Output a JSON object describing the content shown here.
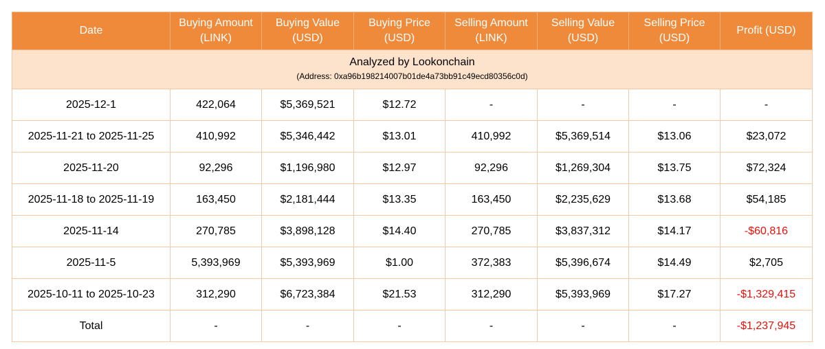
{
  "columns": [
    {
      "l1": "Date",
      "l2": ""
    },
    {
      "l1": "Buying Amount",
      "l2": "(LINK)"
    },
    {
      "l1": "Buying Value",
      "l2": "(USD)"
    },
    {
      "l1": "Buying Price",
      "l2": "(USD)"
    },
    {
      "l1": "Selling Amount",
      "l2": "(LINK)"
    },
    {
      "l1": "Selling Value",
      "l2": "(USD)"
    },
    {
      "l1": "Selling Price",
      "l2": "(USD)"
    },
    {
      "l1": "Profit (USD)",
      "l2": ""
    }
  ],
  "analyzed": {
    "title": "Analyzed by Lookonchain",
    "address": "(Address: 0xa96b198214007b01de4a73bb91c49ecd80356c0d)"
  },
  "rows": [
    {
      "date": "2025-12-1",
      "buy_amount": "422,064",
      "buy_value": "$5,369,521",
      "buy_price": "$12.72",
      "sell_amount": "-",
      "sell_value": "-",
      "sell_price": "-",
      "profit": "-",
      "negative": false
    },
    {
      "date": "2025-11-21 to 2025-11-25",
      "buy_amount": "410,992",
      "buy_value": "$5,346,442",
      "buy_price": "$13.01",
      "sell_amount": "410,992",
      "sell_value": "$5,369,514",
      "sell_price": "$13.06",
      "profit": "$23,072",
      "negative": false
    },
    {
      "date": "2025-11-20",
      "buy_amount": "92,296",
      "buy_value": "$1,196,980",
      "buy_price": "$12.97",
      "sell_amount": "92,296",
      "sell_value": "$1,269,304",
      "sell_price": "$13.75",
      "profit": "$72,324",
      "negative": false
    },
    {
      "date": "2025-11-18 to 2025-11-19",
      "buy_amount": "163,450",
      "buy_value": "$2,181,444",
      "buy_price": "$13.35",
      "sell_amount": "163,450",
      "sell_value": "$2,235,629",
      "sell_price": "$13.68",
      "profit": "$54,185",
      "negative": false
    },
    {
      "date": "2025-11-14",
      "buy_amount": "270,785",
      "buy_value": "$3,898,128",
      "buy_price": "$14.40",
      "sell_amount": "270,785",
      "sell_value": "$3,837,312",
      "sell_price": "$14.17",
      "profit": "-$60,816",
      "negative": true
    },
    {
      "date": "2025-11-5",
      "buy_amount": "5,393,969",
      "buy_value": "$5,393,969",
      "buy_price": "$1.00",
      "sell_amount": "372,383",
      "sell_value": "$5,396,674",
      "sell_price": "$14.49",
      "profit": "$2,705",
      "negative": false
    },
    {
      "date": "2025-10-11 to 2025-10-23",
      "buy_amount": "312,290",
      "buy_value": "$6,723,384",
      "buy_price": "$21.53",
      "sell_amount": "312,290",
      "sell_value": "$5,393,969",
      "sell_price": "$17.27",
      "profit": "-$1,329,415",
      "negative": true
    },
    {
      "date": "Total",
      "buy_amount": "-",
      "buy_value": "-",
      "buy_price": "-",
      "sell_amount": "-",
      "sell_value": "-",
      "sell_price": "-",
      "profit": "-$1,237,945",
      "negative": true
    }
  ],
  "colors": {
    "header_bg": "#ef8a3a",
    "header_text": "#ffffff",
    "analyzed_bg": "#fde2cc",
    "border": "#f5c9a3",
    "negative": "#e8100c"
  }
}
